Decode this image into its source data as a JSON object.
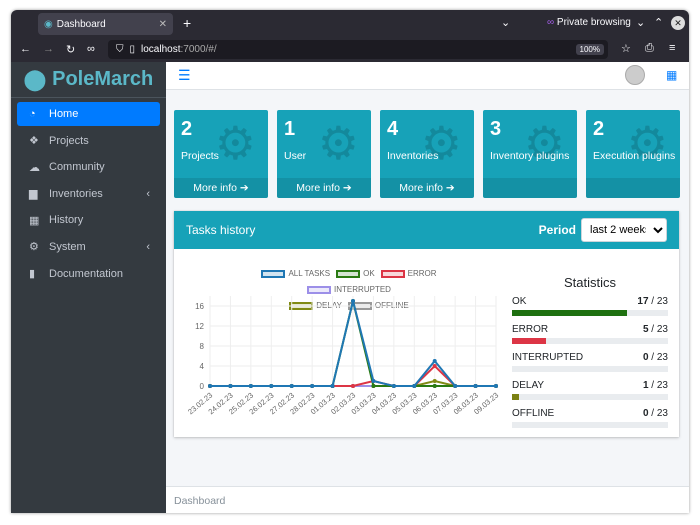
{
  "browser": {
    "tab_title": "Dashboard",
    "new_tab": "+",
    "private_label": "Private browsing",
    "url_host": "localhost",
    "url_rest": ":7000/#/",
    "zoom": "100%"
  },
  "brand": {
    "name": "PoleMarch"
  },
  "sidebar": {
    "items": [
      {
        "label": "Home",
        "icon": "dashboard-icon",
        "glyph": "◔",
        "active": true
      },
      {
        "label": "Projects",
        "icon": "cubes-icon",
        "glyph": "❖"
      },
      {
        "label": "Community",
        "icon": "cloud-icon",
        "glyph": "☁"
      },
      {
        "label": "Inventories",
        "icon": "folder-icon",
        "glyph": "▆",
        "chevron": "‹"
      },
      {
        "label": "History",
        "icon": "calendar-icon",
        "glyph": "▦"
      },
      {
        "label": "System",
        "icon": "cog-icon",
        "glyph": "⚙",
        "chevron": "‹"
      },
      {
        "label": "Documentation",
        "icon": "book-icon",
        "glyph": "▮"
      }
    ]
  },
  "boxes": [
    {
      "count": "2",
      "label": "Projects",
      "more": "More info ➔"
    },
    {
      "count": "1",
      "label": "User",
      "more": "More info ➔"
    },
    {
      "count": "4",
      "label": "Inventories",
      "more": "More info ➔"
    },
    {
      "count": "3",
      "label": "Inventory plugins",
      "more": ""
    },
    {
      "count": "2",
      "label": "Execution plugins",
      "more": ""
    }
  ],
  "tasks": {
    "title": "Tasks history",
    "period_label": "Period",
    "period_value": "last 2 weeks"
  },
  "chart_data": {
    "type": "line",
    "x": [
      "23.02.23",
      "24.02.23",
      "25.02.23",
      "26.02.23",
      "27.02.23",
      "28.02.23",
      "01.03.23",
      "02.03.23",
      "03.03.23",
      "04.03.23",
      "05.03.23",
      "06.03.23",
      "07.03.23",
      "08.03.23",
      "09.03.23"
    ],
    "yticks": [
      0,
      4,
      8,
      12,
      16
    ],
    "ylim": [
      0,
      18
    ],
    "grid": true,
    "legend": "top",
    "series": [
      {
        "name": "ALL TASKS",
        "color": "#1f77b4",
        "values": [
          0,
          0,
          0,
          0,
          0,
          0,
          0,
          17,
          1,
          0,
          0,
          5,
          0,
          0,
          0
        ]
      },
      {
        "name": "OK",
        "color": "#2a7a12",
        "values": [
          0,
          0,
          0,
          0,
          0,
          0,
          0,
          17,
          0,
          0,
          0,
          0,
          0,
          0,
          0
        ]
      },
      {
        "name": "ERROR",
        "color": "#dc3545",
        "values": [
          0,
          0,
          0,
          0,
          0,
          0,
          0,
          0,
          1,
          0,
          0,
          4,
          0,
          0,
          0
        ]
      },
      {
        "name": "INTERRUPTED",
        "color": "#9c8fe8",
        "values": [
          0,
          0,
          0,
          0,
          0,
          0,
          0,
          0,
          0,
          0,
          0,
          0,
          0,
          0,
          0
        ]
      },
      {
        "name": "DELAY",
        "color": "#808a14",
        "values": [
          0,
          0,
          0,
          0,
          0,
          0,
          0,
          0,
          0,
          0,
          0,
          1,
          0,
          0,
          0
        ]
      },
      {
        "name": "OFFLINE",
        "color": "#999999",
        "values": [
          0,
          0,
          0,
          0,
          0,
          0,
          0,
          0,
          0,
          0,
          0,
          0,
          0,
          0,
          0
        ]
      }
    ]
  },
  "statistics": {
    "title": "Statistics",
    "total": "23",
    "items": [
      {
        "label": "OK",
        "value": "17",
        "color": "#1e7010"
      },
      {
        "label": "ERROR",
        "value": "5",
        "color": "#dc3545"
      },
      {
        "label": "INTERRUPTED",
        "value": "0",
        "color": "#9c8fe8"
      },
      {
        "label": "DELAY",
        "value": "1",
        "color": "#7a8012"
      },
      {
        "label": "OFFLINE",
        "value": "0",
        "color": "#999999"
      }
    ]
  },
  "footer": {
    "text": "Dashboard"
  }
}
